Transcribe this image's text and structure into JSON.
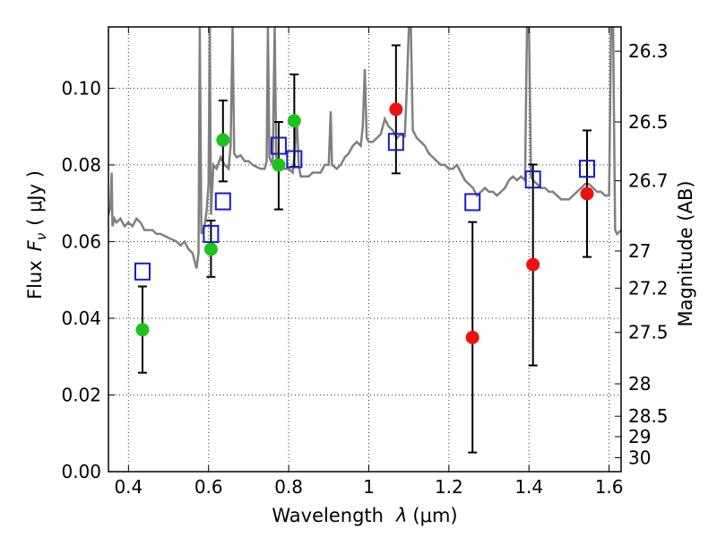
{
  "chart_data": {
    "type": "scatter",
    "xlabel_text": "Wavelength",
    "xlabel_symbol": "λ",
    "xlabel_unit": "(μm)",
    "ylabel_text": "Flux",
    "ylabel_symbol": "F",
    "ylabel_sub": "ν",
    "ylabel_unit": "( μJy )",
    "y2label": "Magnitude (AB)",
    "xlim": [
      0.35,
      1.63
    ],
    "ylim": [
      0,
      0.116
    ],
    "grid": true,
    "x_ticks": [
      {
        "v": 0.4,
        "label": "0.4"
      },
      {
        "v": 0.6,
        "label": "0.6"
      },
      {
        "v": 0.8,
        "label": "0.8"
      },
      {
        "v": 1.0,
        "label": "1"
      },
      {
        "v": 1.2,
        "label": "1.2"
      },
      {
        "v": 1.4,
        "label": "1.4"
      },
      {
        "v": 1.6,
        "label": "1.6"
      }
    ],
    "y_ticks": [
      {
        "v": 0.0,
        "label": "0.00"
      },
      {
        "v": 0.02,
        "label": "0.02"
      },
      {
        "v": 0.04,
        "label": "0.04"
      },
      {
        "v": 0.06,
        "label": "0.06"
      },
      {
        "v": 0.08,
        "label": "0.08"
      },
      {
        "v": 0.1,
        "label": "0.10"
      }
    ],
    "mag_ticks": [
      {
        "mag": 26.3,
        "label": "26.3"
      },
      {
        "mag": 26.5,
        "label": "26.5"
      },
      {
        "mag": 26.7,
        "label": "26.7"
      },
      {
        "mag": 27.0,
        "label": "27"
      },
      {
        "mag": 27.2,
        "label": "27.2"
      },
      {
        "mag": 27.5,
        "label": "27.5"
      },
      {
        "mag": 28.0,
        "label": "28"
      },
      {
        "mag": 28.5,
        "label": "28.5"
      },
      {
        "mag": 29.0,
        "label": "29"
      },
      {
        "mag": 30.0,
        "label": "30"
      }
    ],
    "colors": {
      "model": "#808080",
      "green": "#1ec31e",
      "red": "#ee1111",
      "square": "#1a1acc",
      "errorbar": "#000000"
    },
    "observed_green": [
      {
        "x": 0.435,
        "y": 0.037,
        "err_lo": 0.0258,
        "err_hi": 0.0483
      },
      {
        "x": 0.606,
        "y": 0.058,
        "err_lo": 0.0508,
        "err_hi": 0.0655
      },
      {
        "x": 0.636,
        "y": 0.0865,
        "err_lo": 0.0757,
        "err_hi": 0.0968
      },
      {
        "x": 0.775,
        "y": 0.08,
        "err_lo": 0.0684,
        "err_hi": 0.0912
      },
      {
        "x": 0.814,
        "y": 0.0915,
        "err_lo": 0.0795,
        "err_hi": 0.1036
      }
    ],
    "observed_red": [
      {
        "x": 1.068,
        "y": 0.0945,
        "err_lo": 0.0778,
        "err_hi": 0.1112
      },
      {
        "x": 1.259,
        "y": 0.035,
        "err_lo": 0.005,
        "err_hi": 0.0651
      },
      {
        "x": 1.41,
        "y": 0.054,
        "err_lo": 0.0277,
        "err_hi": 0.0801
      },
      {
        "x": 1.545,
        "y": 0.0725,
        "err_lo": 0.056,
        "err_hi": 0.089
      }
    ],
    "model_bands": [
      {
        "x": 0.435,
        "y": 0.0522
      },
      {
        "x": 0.606,
        "y": 0.062
      },
      {
        "x": 0.636,
        "y": 0.0705
      },
      {
        "x": 0.775,
        "y": 0.085
      },
      {
        "x": 0.814,
        "y": 0.0815
      },
      {
        "x": 1.068,
        "y": 0.086
      },
      {
        "x": 1.259,
        "y": 0.0703
      },
      {
        "x": 1.41,
        "y": 0.0762
      },
      {
        "x": 1.545,
        "y": 0.079
      }
    ],
    "model_spectrum": [
      [
        0.35,
        0.067
      ],
      [
        0.355,
        0.069
      ],
      [
        0.358,
        0.078
      ],
      [
        0.36,
        0.064
      ],
      [
        0.365,
        0.066
      ],
      [
        0.37,
        0.065
      ],
      [
        0.38,
        0.066
      ],
      [
        0.39,
        0.064
      ],
      [
        0.4,
        0.065
      ],
      [
        0.41,
        0.064
      ],
      [
        0.42,
        0.066
      ],
      [
        0.43,
        0.065
      ],
      [
        0.44,
        0.063
      ],
      [
        0.45,
        0.063
      ],
      [
        0.46,
        0.063
      ],
      [
        0.47,
        0.062
      ],
      [
        0.48,
        0.062
      ],
      [
        0.49,
        0.0615
      ],
      [
        0.5,
        0.061
      ],
      [
        0.51,
        0.0605
      ],
      [
        0.52,
        0.06
      ],
      [
        0.53,
        0.059
      ],
      [
        0.54,
        0.06
      ],
      [
        0.55,
        0.058
      ],
      [
        0.56,
        0.057
      ],
      [
        0.565,
        0.055
      ],
      [
        0.57,
        0.053
      ],
      [
        0.575,
        0.057
      ],
      [
        0.578,
        0.116
      ],
      [
        0.582,
        0.062
      ],
      [
        0.59,
        0.064
      ],
      [
        0.595,
        0.068
      ],
      [
        0.6,
        0.075
      ],
      [
        0.603,
        0.116
      ],
      [
        0.606,
        0.067
      ],
      [
        0.612,
        0.08
      ],
      [
        0.62,
        0.079
      ],
      [
        0.63,
        0.082
      ],
      [
        0.64,
        0.08
      ],
      [
        0.65,
        0.079
      ],
      [
        0.655,
        0.085
      ],
      [
        0.66,
        0.116
      ],
      [
        0.664,
        0.083
      ],
      [
        0.67,
        0.082
      ],
      [
        0.68,
        0.0825
      ],
      [
        0.69,
        0.081
      ],
      [
        0.7,
        0.081
      ],
      [
        0.71,
        0.08
      ],
      [
        0.72,
        0.0795
      ],
      [
        0.73,
        0.079
      ],
      [
        0.74,
        0.079
      ],
      [
        0.745,
        0.081
      ],
      [
        0.748,
        0.116
      ],
      [
        0.752,
        0.082
      ],
      [
        0.76,
        0.08
      ],
      [
        0.765,
        0.116
      ],
      [
        0.769,
        0.082
      ],
      [
        0.78,
        0.0805
      ],
      [
        0.79,
        0.079
      ],
      [
        0.8,
        0.079
      ],
      [
        0.81,
        0.078
      ],
      [
        0.815,
        0.083
      ],
      [
        0.82,
        0.093
      ],
      [
        0.825,
        0.08
      ],
      [
        0.83,
        0.077
      ],
      [
        0.84,
        0.077
      ],
      [
        0.85,
        0.077
      ],
      [
        0.86,
        0.078
      ],
      [
        0.87,
        0.078
      ],
      [
        0.88,
        0.078
      ],
      [
        0.89,
        0.08
      ],
      [
        0.9,
        0.08
      ],
      [
        0.905,
        0.094
      ],
      [
        0.908,
        0.08
      ],
      [
        0.92,
        0.079
      ],
      [
        0.93,
        0.08
      ],
      [
        0.94,
        0.082
      ],
      [
        0.95,
        0.083
      ],
      [
        0.96,
        0.085
      ],
      [
        0.97,
        0.086
      ],
      [
        0.98,
        0.085
      ],
      [
        0.985,
        0.09
      ],
      [
        0.99,
        0.105
      ],
      [
        0.995,
        0.087
      ],
      [
        1.0,
        0.086
      ],
      [
        1.01,
        0.086
      ],
      [
        1.02,
        0.087
      ],
      [
        1.03,
        0.088
      ],
      [
        1.04,
        0.092
      ],
      [
        1.05,
        0.09
      ],
      [
        1.06,
        0.089
      ],
      [
        1.07,
        0.087
      ],
      [
        1.08,
        0.088
      ],
      [
        1.09,
        0.0875
      ],
      [
        1.095,
        0.1
      ],
      [
        1.1,
        0.116
      ],
      [
        1.105,
        0.116
      ],
      [
        1.11,
        0.089
      ],
      [
        1.12,
        0.087
      ],
      [
        1.13,
        0.086
      ],
      [
        1.14,
        0.085
      ],
      [
        1.15,
        0.083
      ],
      [
        1.16,
        0.082
      ],
      [
        1.17,
        0.081
      ],
      [
        1.18,
        0.08
      ],
      [
        1.19,
        0.08
      ],
      [
        1.2,
        0.079
      ],
      [
        1.21,
        0.079
      ],
      [
        1.22,
        0.08
      ],
      [
        1.23,
        0.078
      ],
      [
        1.24,
        0.076
      ],
      [
        1.25,
        0.075
      ],
      [
        1.26,
        0.074
      ],
      [
        1.27,
        0.072
      ],
      [
        1.28,
        0.073
      ],
      [
        1.29,
        0.074
      ],
      [
        1.3,
        0.073
      ],
      [
        1.31,
        0.073
      ],
      [
        1.32,
        0.072
      ],
      [
        1.33,
        0.073
      ],
      [
        1.34,
        0.074
      ],
      [
        1.35,
        0.076
      ],
      [
        1.36,
        0.077
      ],
      [
        1.37,
        0.076
      ],
      [
        1.38,
        0.077
      ],
      [
        1.39,
        0.076
      ],
      [
        1.395,
        0.116
      ],
      [
        1.4,
        0.116
      ],
      [
        1.405,
        0.077
      ],
      [
        1.41,
        0.076
      ],
      [
        1.42,
        0.075
      ],
      [
        1.43,
        0.074
      ],
      [
        1.44,
        0.074
      ],
      [
        1.45,
        0.073
      ],
      [
        1.46,
        0.073
      ],
      [
        1.47,
        0.072
      ],
      [
        1.48,
        0.071
      ],
      [
        1.49,
        0.071
      ],
      [
        1.5,
        0.071
      ],
      [
        1.51,
        0.072
      ],
      [
        1.52,
        0.073
      ],
      [
        1.53,
        0.074
      ],
      [
        1.54,
        0.075
      ],
      [
        1.55,
        0.075
      ],
      [
        1.56,
        0.074
      ],
      [
        1.57,
        0.073
      ],
      [
        1.58,
        0.073
      ],
      [
        1.59,
        0.072
      ],
      [
        1.6,
        0.072
      ],
      [
        1.605,
        0.116
      ],
      [
        1.61,
        0.116
      ],
      [
        1.615,
        0.063
      ],
      [
        1.62,
        0.062
      ],
      [
        1.63,
        0.063
      ]
    ]
  }
}
